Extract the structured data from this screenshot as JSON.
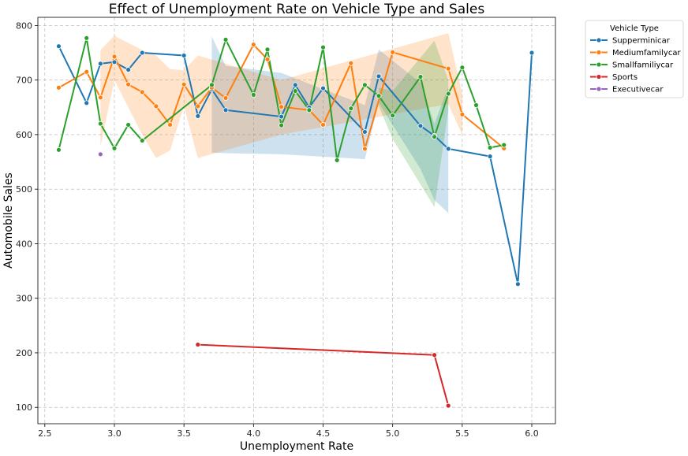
{
  "chart_data": {
    "type": "line",
    "title": "Effect of Unemployment Rate on Vehicle Type and Sales",
    "xlabel": "Unemployment Rate",
    "ylabel": "Automobile Sales",
    "xlim": [
      2.45,
      6.17
    ],
    "ylim": [
      70,
      815
    ],
    "xticks": [
      2.5,
      3.0,
      3.5,
      4.0,
      4.5,
      5.0,
      5.5,
      6.0
    ],
    "xtick_labels": [
      "2.5",
      "3.0",
      "3.5",
      "4.0",
      "4.5",
      "5.0",
      "5.5",
      "6.0"
    ],
    "yticks": [
      100,
      200,
      300,
      400,
      500,
      600,
      700,
      800
    ],
    "ytick_labels": [
      "100",
      "200",
      "300",
      "400",
      "500",
      "600",
      "700",
      "800"
    ],
    "grid": true,
    "legend": {
      "title": "Vehicle Type",
      "placement": "upper right, outside plot"
    },
    "series": [
      {
        "name": "Supperminicar",
        "color": "#1f77b4",
        "x": [
          2.6,
          2.8,
          2.9,
          3.0,
          3.1,
          3.2,
          3.5,
          3.6,
          3.7,
          3.8,
          4.2,
          4.3,
          4.4,
          4.5,
          4.8,
          4.9,
          5.2,
          5.3,
          5.4,
          5.7,
          5.9,
          6.0
        ],
        "y": [
          762,
          658,
          730,
          733,
          719,
          750,
          745,
          634,
          683,
          645,
          633,
          691,
          650,
          685,
          605,
          707,
          616,
          598,
          574,
          560,
          326,
          750
        ],
        "band": [
          [
            3.7,
            780,
            567
          ],
          [
            3.8,
            726,
            566
          ],
          [
            4.2,
            713,
            564
          ],
          [
            4.8,
            654,
            555
          ],
          [
            4.9,
            756,
            658
          ],
          [
            5.2,
            695,
            537
          ],
          [
            5.3,
            620,
            480
          ],
          [
            5.4,
            688,
            456
          ]
        ]
      },
      {
        "name": "Mediumfamilycar",
        "color": "#ff7f0e",
        "x": [
          2.6,
          2.8,
          2.9,
          3.0,
          3.1,
          3.2,
          3.3,
          3.4,
          3.5,
          3.6,
          3.7,
          3.8,
          4.0,
          4.1,
          4.2,
          4.4,
          4.5,
          4.7,
          4.8,
          5.0,
          5.4,
          5.5,
          5.8
        ],
        "y": [
          686,
          715,
          668,
          743,
          692,
          678,
          652,
          618,
          692,
          652,
          686,
          667,
          765,
          738,
          651,
          645,
          618,
          731,
          574,
          751,
          721,
          637,
          575
        ],
        "band": [
          [
            2.9,
            755,
            578
          ],
          [
            3.0,
            781,
            700
          ],
          [
            3.2,
            755,
            600
          ],
          [
            3.3,
            745,
            557
          ],
          [
            3.4,
            720,
            571
          ],
          [
            3.5,
            718,
            652
          ],
          [
            3.6,
            745,
            557
          ],
          [
            4.2,
            700,
            600
          ],
          [
            5.4,
            786,
            656
          ],
          [
            5.5,
            675,
            600
          ]
        ]
      },
      {
        "name": "Smallfamiliycar",
        "color": "#2ca02c",
        "x": [
          2.6,
          2.8,
          2.9,
          3.0,
          3.1,
          3.2,
          3.7,
          3.8,
          4.0,
          4.1,
          4.2,
          4.3,
          4.4,
          4.5,
          4.6,
          4.7,
          4.8,
          4.9,
          5.0,
          5.2,
          5.3,
          5.4,
          5.5,
          5.6,
          5.7,
          5.8
        ],
        "y": [
          572,
          777,
          620,
          575,
          618,
          589,
          691,
          774,
          673,
          756,
          617,
          680,
          645,
          760,
          553,
          648,
          691,
          671,
          635,
          706,
          596,
          675,
          723,
          654,
          576,
          581
        ],
        "band": [
          [
            4.9,
            686,
            652
          ],
          [
            5.0,
            680,
            592
          ],
          [
            5.3,
            772,
            467
          ],
          [
            5.4,
            700,
            645
          ]
        ]
      },
      {
        "name": "Sports",
        "color": "#d62728",
        "x": [
          3.6,
          5.3,
          5.4
        ],
        "y": [
          215,
          196,
          103
        ],
        "band": []
      },
      {
        "name": "Executivecar",
        "color": "#9467bd",
        "x": [
          2.9
        ],
        "y": [
          564
        ],
        "band": []
      }
    ]
  }
}
